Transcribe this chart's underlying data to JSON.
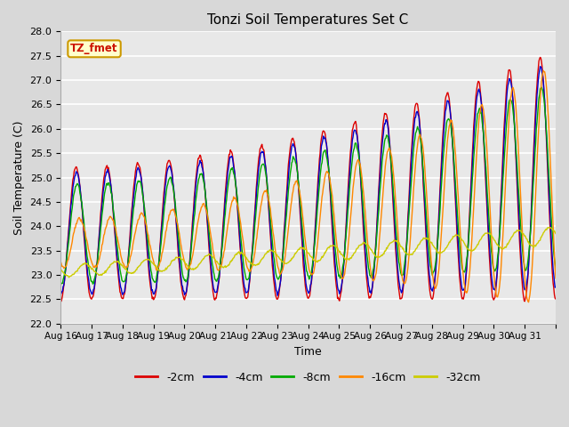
{
  "title": "Tonzi Soil Temperatures Set C",
  "xlabel": "Time",
  "ylabel": "Soil Temperature (C)",
  "ylim": [
    22.0,
    28.0
  ],
  "yticks": [
    22.0,
    22.5,
    23.0,
    23.5,
    24.0,
    24.5,
    25.0,
    25.5,
    26.0,
    26.5,
    27.0,
    27.5,
    28.0
  ],
  "x_labels": [
    "Aug 16",
    "Aug 17",
    "Aug 18",
    "Aug 19",
    "Aug 20",
    "Aug 21",
    "Aug 22",
    "Aug 23",
    "Aug 24",
    "Aug 25",
    "Aug 26",
    "Aug 27",
    "Aug 28",
    "Aug 29",
    "Aug 30",
    "Aug 31"
  ],
  "n_days": 16,
  "points_per_day": 48,
  "annotation_text": "TZ_fmet",
  "colors": {
    "-2cm": "#dd0000",
    "-4cm": "#0000cc",
    "-8cm": "#00aa00",
    "-16cm": "#ff8800",
    "-32cm": "#cccc00"
  },
  "figsize": [
    6.4,
    4.8
  ],
  "dpi": 100
}
